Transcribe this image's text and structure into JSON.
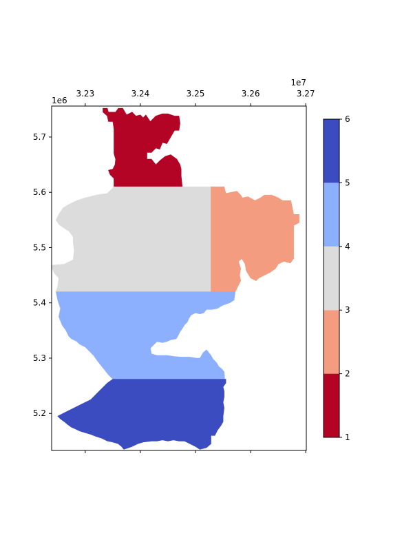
{
  "chart_data": {
    "type": "heatmap",
    "title": "",
    "xlabel": "",
    "ylabel": "",
    "x_ticks": [
      "3.23",
      "3.24",
      "3.25",
      "3.26",
      "3.27"
    ],
    "x_tick_values": [
      32300000,
      32400000,
      32500000,
      32600000,
      32700000
    ],
    "x_offset_label": "1e7",
    "x_axis_position": "top",
    "y_ticks": [
      "5.2",
      "5.3",
      "5.4",
      "5.5",
      "5.6",
      "5.7"
    ],
    "y_tick_values": [
      5200000,
      5300000,
      5400000,
      5500000,
      5600000,
      5700000
    ],
    "y_offset_label": "1e6",
    "xlim": [
      32239000,
      32701000
    ],
    "ylim": [
      5133000,
      5756000
    ],
    "grid": false,
    "colorbar": {
      "ticks": [
        "1",
        "2",
        "3",
        "4",
        "5",
        "6"
      ],
      "tick_values": [
        1,
        2,
        3,
        4,
        5,
        6
      ],
      "levels": [
        {
          "range": [
            1,
            2
          ],
          "color": "#b40426"
        },
        {
          "range": [
            2,
            3
          ],
          "color": "#f39c7f"
        },
        {
          "range": [
            3,
            4
          ],
          "color": "#dddcdc"
        },
        {
          "range": [
            4,
            5
          ],
          "color": "#8db0fe"
        },
        {
          "range": [
            5,
            6
          ],
          "color": "#3b4cc0"
        }
      ]
    },
    "regions": [
      {
        "class": 1,
        "color": "#b40426",
        "polygon": [
          [
            32332000,
            5752000
          ],
          [
            32340000,
            5752000
          ],
          [
            32342000,
            5745000
          ],
          [
            32355000,
            5745000
          ],
          [
            32360000,
            5752000
          ],
          [
            32368000,
            5752000
          ],
          [
            32375000,
            5740000
          ],
          [
            32385000,
            5745000
          ],
          [
            32392000,
            5738000
          ],
          [
            32400000,
            5740000
          ],
          [
            32405000,
            5735000
          ],
          [
            32410000,
            5740000
          ],
          [
            32418000,
            5728000
          ],
          [
            32428000,
            5738000
          ],
          [
            32440000,
            5742000
          ],
          [
            32450000,
            5742000
          ],
          [
            32462000,
            5738000
          ],
          [
            32470000,
            5738000
          ],
          [
            32472000,
            5725000
          ],
          [
            32470000,
            5712000
          ],
          [
            32462000,
            5712000
          ],
          [
            32455000,
            5700000
          ],
          [
            32448000,
            5688000
          ],
          [
            32440000,
            5690000
          ],
          [
            32435000,
            5678000
          ],
          [
            32428000,
            5680000
          ],
          [
            32420000,
            5672000
          ],
          [
            32412000,
            5672000
          ],
          [
            32412000,
            5660000
          ],
          [
            32420000,
            5660000
          ],
          [
            32428000,
            5650000
          ],
          [
            32436000,
            5658000
          ],
          [
            32445000,
            5665000
          ],
          [
            32455000,
            5668000
          ],
          [
            32466000,
            5660000
          ],
          [
            32472000,
            5650000
          ],
          [
            32474000,
            5642000
          ],
          [
            32474000,
            5630000
          ],
          [
            32476000,
            5610000
          ],
          [
            32352000,
            5610000
          ],
          [
            32352000,
            5625000
          ],
          [
            32345000,
            5632000
          ],
          [
            32342000,
            5640000
          ],
          [
            32350000,
            5642000
          ],
          [
            32354000,
            5650000
          ],
          [
            32355000,
            5660000
          ],
          [
            32352000,
            5670000
          ],
          [
            32352000,
            5688000
          ],
          [
            32352000,
            5700000
          ],
          [
            32352000,
            5715000
          ],
          [
            32350000,
            5728000
          ],
          [
            32342000,
            5728000
          ],
          [
            32340000,
            5738000
          ],
          [
            32332000,
            5745000
          ]
        ]
      },
      {
        "class": 3,
        "color": "#dddcdc",
        "polygon": [
          [
            32352000,
            5610000
          ],
          [
            32528000,
            5610000
          ],
          [
            32528000,
            5420000
          ],
          [
            32247000,
            5420000
          ],
          [
            32250000,
            5430000
          ],
          [
            32252000,
            5445000
          ],
          [
            32245000,
            5452000
          ],
          [
            32240000,
            5462000
          ],
          [
            32239000,
            5468000
          ],
          [
            32262000,
            5470000
          ],
          [
            32278000,
            5478000
          ],
          [
            32280000,
            5495000
          ],
          [
            32278000,
            5510000
          ],
          [
            32278000,
            5520000
          ],
          [
            32270000,
            5530000
          ],
          [
            32262000,
            5535000
          ],
          [
            32252000,
            5542000
          ],
          [
            32247000,
            5550000
          ],
          [
            32252000,
            5560000
          ],
          [
            32260000,
            5572000
          ],
          [
            32270000,
            5578000
          ],
          [
            32285000,
            5585000
          ],
          [
            32300000,
            5590000
          ],
          [
            32320000,
            5595000
          ],
          [
            32340000,
            5598000
          ]
        ]
      },
      {
        "class": 2,
        "color": "#f39c7f",
        "polygon": [
          [
            32528000,
            5610000
          ],
          [
            32552000,
            5610000
          ],
          [
            32555000,
            5598000
          ],
          [
            32575000,
            5602000
          ],
          [
            32582000,
            5595000
          ],
          [
            32585000,
            5590000
          ],
          [
            32595000,
            5592000
          ],
          [
            32608000,
            5585000
          ],
          [
            32618000,
            5590000
          ],
          [
            32625000,
            5595000
          ],
          [
            32638000,
            5595000
          ],
          [
            32650000,
            5590000
          ],
          [
            32658000,
            5585000
          ],
          [
            32673000,
            5585000
          ],
          [
            32678000,
            5560000
          ],
          [
            32688000,
            5560000
          ],
          [
            32688000,
            5545000
          ],
          [
            32678000,
            5540000
          ],
          [
            32678000,
            5480000
          ],
          [
            32672000,
            5472000
          ],
          [
            32660000,
            5475000
          ],
          [
            32650000,
            5470000
          ],
          [
            32645000,
            5462000
          ],
          [
            32635000,
            5455000
          ],
          [
            32625000,
            5450000
          ],
          [
            32615000,
            5445000
          ],
          [
            32610000,
            5440000
          ],
          [
            32600000,
            5445000
          ],
          [
            32592000,
            5458000
          ],
          [
            32590000,
            5470000
          ],
          [
            32584000,
            5480000
          ],
          [
            32578000,
            5475000
          ],
          [
            32582000,
            5462000
          ],
          [
            32580000,
            5450000
          ],
          [
            32582000,
            5440000
          ],
          [
            32578000,
            5432000
          ],
          [
            32572000,
            5420000
          ],
          [
            32532000,
            5420000
          ],
          [
            32528000,
            5420000
          ]
        ]
      },
      {
        "class": 4,
        "color": "#8db0fe",
        "polygon": [
          [
            32247000,
            5420000
          ],
          [
            32572000,
            5420000
          ],
          [
            32570000,
            5405000
          ],
          [
            32562000,
            5400000
          ],
          [
            32556000,
            5398000
          ],
          [
            32548000,
            5395000
          ],
          [
            32540000,
            5390000
          ],
          [
            32530000,
            5388000
          ],
          [
            32520000,
            5388000
          ],
          [
            32515000,
            5382000
          ],
          [
            32508000,
            5380000
          ],
          [
            32500000,
            5382000
          ],
          [
            32492000,
            5378000
          ],
          [
            32488000,
            5372000
          ],
          [
            32485000,
            5365000
          ],
          [
            32480000,
            5360000
          ],
          [
            32475000,
            5352000
          ],
          [
            32472000,
            5348000
          ],
          [
            32468000,
            5340000
          ],
          [
            32465000,
            5335000
          ],
          [
            32455000,
            5333000
          ],
          [
            32448000,
            5330000
          ],
          [
            32440000,
            5328000
          ],
          [
            32430000,
            5330000
          ],
          [
            32425000,
            5325000
          ],
          [
            32418000,
            5318000
          ],
          [
            32420000,
            5308000
          ],
          [
            32430000,
            5305000
          ],
          [
            32448000,
            5305000
          ],
          [
            32462000,
            5303000
          ],
          [
            32475000,
            5302000
          ],
          [
            32490000,
            5302000
          ],
          [
            32502000,
            5300000
          ],
          [
            32508000,
            5300000
          ],
          [
            32514000,
            5310000
          ],
          [
            32520000,
            5315000
          ],
          [
            32528000,
            5305000
          ],
          [
            32532000,
            5298000
          ],
          [
            32538000,
            5292000
          ],
          [
            32542000,
            5285000
          ],
          [
            32548000,
            5280000
          ],
          [
            32552000,
            5275000
          ],
          [
            32553000,
            5262000
          ],
          [
            32350000,
            5262000
          ],
          [
            32342000,
            5270000
          ],
          [
            32330000,
            5285000
          ],
          [
            32322000,
            5295000
          ],
          [
            32315000,
            5305000
          ],
          [
            32308000,
            5312000
          ],
          [
            32300000,
            5320000
          ],
          [
            32290000,
            5325000
          ],
          [
            32285000,
            5330000
          ],
          [
            32275000,
            5335000
          ],
          [
            32270000,
            5340000
          ],
          [
            32265000,
            5350000
          ],
          [
            32258000,
            5360000
          ],
          [
            32252000,
            5375000
          ],
          [
            32255000,
            5390000
          ],
          [
            32250000,
            5405000
          ]
        ]
      },
      {
        "class": 5,
        "color": "#3b4cc0",
        "polygon": [
          [
            32350000,
            5262000
          ],
          [
            32555000,
            5262000
          ],
          [
            32555000,
            5255000
          ],
          [
            32550000,
            5248000
          ],
          [
            32552000,
            5240000
          ],
          [
            32552000,
            5230000
          ],
          [
            32550000,
            5220000
          ],
          [
            32552000,
            5210000
          ],
          [
            32550000,
            5195000
          ],
          [
            32550000,
            5185000
          ],
          [
            32546000,
            5178000
          ],
          [
            32540000,
            5170000
          ],
          [
            32535000,
            5160000
          ],
          [
            32528000,
            5160000
          ],
          [
            32528000,
            5145000
          ],
          [
            32520000,
            5138000
          ],
          [
            32508000,
            5135000
          ],
          [
            32500000,
            5140000
          ],
          [
            32490000,
            5145000
          ],
          [
            32480000,
            5150000
          ],
          [
            32470000,
            5150000
          ],
          [
            32460000,
            5152000
          ],
          [
            32450000,
            5150000
          ],
          [
            32440000,
            5152000
          ],
          [
            32430000,
            5150000
          ],
          [
            32420000,
            5150000
          ],
          [
            32405000,
            5148000
          ],
          [
            32395000,
            5145000
          ],
          [
            32385000,
            5140000
          ],
          [
            32370000,
            5135000
          ],
          [
            32366000,
            5140000
          ],
          [
            32360000,
            5145000
          ],
          [
            32350000,
            5148000
          ],
          [
            32340000,
            5150000
          ],
          [
            32330000,
            5155000
          ],
          [
            32320000,
            5158000
          ],
          [
            32310000,
            5162000
          ],
          [
            32300000,
            5165000
          ],
          [
            32290000,
            5168000
          ],
          [
            32282000,
            5172000
          ],
          [
            32275000,
            5175000
          ],
          [
            32268000,
            5180000
          ],
          [
            32262000,
            5185000
          ],
          [
            32255000,
            5190000
          ],
          [
            32250000,
            5195000
          ],
          [
            32260000,
            5200000
          ],
          [
            32270000,
            5205000
          ],
          [
            32280000,
            5210000
          ],
          [
            32290000,
            5215000
          ],
          [
            32300000,
            5220000
          ],
          [
            32310000,
            5225000
          ],
          [
            32320000,
            5235000
          ],
          [
            32330000,
            5245000
          ],
          [
            32340000,
            5255000
          ]
        ]
      }
    ]
  }
}
